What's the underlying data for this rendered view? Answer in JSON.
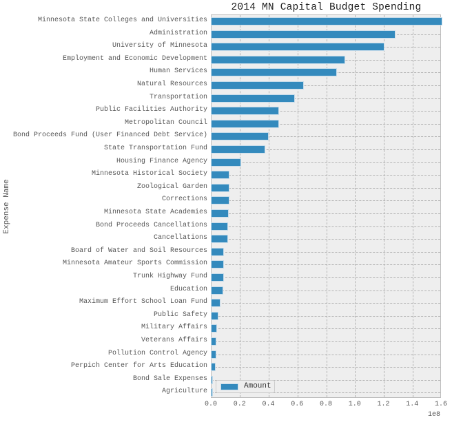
{
  "chart_data": {
    "type": "bar",
    "orientation": "horizontal",
    "title": "2014 MN Capital Budget Spending",
    "xlabel": "",
    "ylabel": "Expense Name",
    "x_offset_label": "1e8",
    "xlim": [
      0,
      160000000
    ],
    "x_ticks": [
      "0.0",
      "0.2",
      "0.4",
      "0.6",
      "0.8",
      "1.0",
      "1.2",
      "1.4",
      "1.6"
    ],
    "grid": true,
    "legend": {
      "position": "lower left",
      "entries": [
        "Amount"
      ]
    },
    "bar_color": "#348abd",
    "background_color": "#eeeeee",
    "categories": [
      "Minnesota State Colleges and Universities",
      "Administration",
      "University of Minnesota",
      "Employment and Economic Development",
      "Human Services",
      "Natural Resources",
      "Transportation",
      "Public Facilities Authority",
      "Metropolitan Council",
      "Bond Proceeds Fund (User Financed Debt Service)",
      "State Transportation Fund",
      "Housing Finance Agency",
      "Minnesota Historical Society",
      "Zoological Garden",
      "Corrections",
      "Minnesota State Academies",
      "Bond Proceeds Cancellations",
      "Cancellations",
      "Board of Water and Soil Resources",
      "Minnesota Amateur Sports Commission",
      "Trunk Highway Fund",
      "Education",
      "Maximum Effort School Loan Fund",
      "Public Safety",
      "Military Affairs",
      "Veterans Affairs",
      "Pollution Control Agency",
      "Perpich Center for Arts Education",
      "Bond Sale Expenses",
      "Agriculture"
    ],
    "series": [
      {
        "name": "Amount",
        "values": [
          160000000,
          127400000,
          119700000,
          92400000,
          86600000,
          63500000,
          57400000,
          46400000,
          46400000,
          39200000,
          36700000,
          20200000,
          11900000,
          11900000,
          11900000,
          11400000,
          10900000,
          10900000,
          8100000,
          8100000,
          8100000,
          7600000,
          5700000,
          4200000,
          3300000,
          2800000,
          2800000,
          2300000,
          600000,
          500000
        ]
      }
    ]
  }
}
